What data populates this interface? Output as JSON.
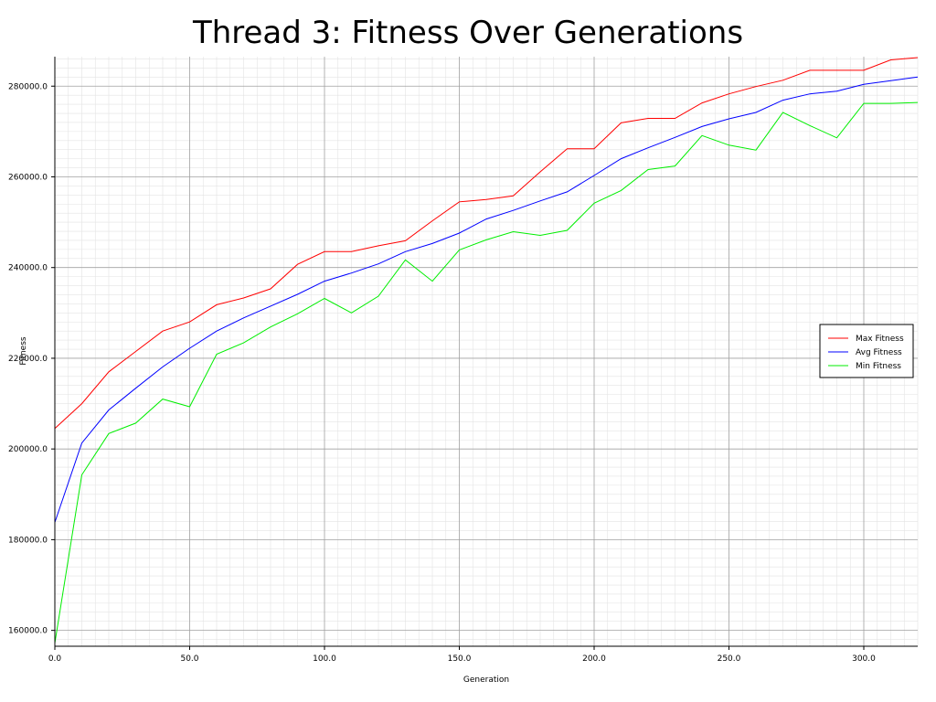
{
  "chart_data": {
    "type": "line",
    "title": "Thread 3: Fitness Over Generations",
    "xlabel": "Generation",
    "ylabel": "Fitness",
    "xlim": [
      0,
      320
    ],
    "ylim": [
      156500,
      286500
    ],
    "xticks": [
      0,
      50,
      100,
      150,
      200,
      250,
      300
    ],
    "xtick_labels": [
      "0.0",
      "50.0",
      "100.0",
      "150.0",
      "200.0",
      "250.0",
      "300.0"
    ],
    "yticks": [
      160000,
      180000,
      200000,
      220000,
      240000,
      260000,
      280000
    ],
    "ytick_labels": [
      "160000.0",
      "180000.0",
      "200000.0",
      "220000.0",
      "240000.0",
      "260000.0",
      "280000.0"
    ],
    "grid": true,
    "legend_position": "right",
    "x": [
      0,
      10,
      20,
      30,
      40,
      50,
      60,
      70,
      80,
      90,
      100,
      110,
      120,
      130,
      140,
      150,
      160,
      170,
      180,
      190,
      200,
      210,
      220,
      230,
      240,
      250,
      260,
      270,
      280,
      290,
      300,
      310,
      320
    ],
    "series": [
      {
        "name": "Max Fitness",
        "color": "#ff0000",
        "values": [
          204500,
          210000,
          217000,
          221500,
          226000,
          228000,
          231800,
          233300,
          235300,
          240700,
          243500,
          243500,
          244800,
          245900,
          250300,
          254500,
          255000,
          255800,
          261100,
          266200,
          266200,
          271900,
          272900,
          272900,
          276300,
          278300,
          279900,
          281300,
          283500,
          283500,
          283500,
          285800,
          286300
        ]
      },
      {
        "name": "Avg Fitness",
        "color": "#0000ff",
        "values": [
          183800,
          201300,
          208600,
          213400,
          218100,
          222200,
          226000,
          228900,
          231500,
          234100,
          237000,
          238800,
          240800,
          243500,
          245300,
          247600,
          250700,
          252600,
          254700,
          256700,
          260300,
          264000,
          266400,
          268700,
          271100,
          272800,
          274200,
          276900,
          278300,
          278900,
          280400,
          281200,
          282000
        ]
      },
      {
        "name": "Min Fitness",
        "color": "#00ee00",
        "values": [
          157200,
          194300,
          203400,
          205700,
          211000,
          209300,
          220900,
          223400,
          226900,
          229800,
          233200,
          230000,
          233700,
          241700,
          237000,
          243900,
          246100,
          247900,
          247100,
          248200,
          254200,
          257000,
          261600,
          262400,
          269100,
          267000,
          265900,
          274200,
          271300,
          268600,
          276200,
          276200,
          276400
        ]
      }
    ]
  }
}
